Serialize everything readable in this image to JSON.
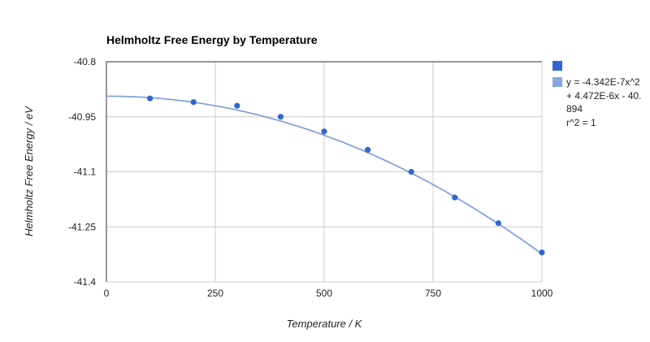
{
  "chart_data": {
    "type": "scatter",
    "title": "Helmholtz Free Energy by Temperature",
    "xlabel": "Temperature / K",
    "ylabel": "Helmholtz Free Energy / eV",
    "xlim": [
      0,
      1000
    ],
    "ylim": [
      -41.4,
      -40.8
    ],
    "x_ticks": [
      0,
      250,
      500,
      750,
      1000
    ],
    "y_ticks": [
      -40.8,
      -40.95,
      -41.1,
      -41.25,
      -41.4
    ],
    "x_tick_labels": [
      "0",
      "250",
      "500",
      "750",
      "1000"
    ],
    "y_tick_labels": [
      "-40.8",
      "-40.95",
      "-41.1",
      "-41.25",
      "-41.4"
    ],
    "grid": true,
    "legend_position": "right",
    "series": [
      {
        "name": "",
        "color": "#3366cc",
        "points": [
          {
            "x": 100,
            "y": -40.9
          },
          {
            "x": 200,
            "y": -40.91
          },
          {
            "x": 300,
            "y": -40.92
          },
          {
            "x": 400,
            "y": -40.95
          },
          {
            "x": 500,
            "y": -40.99
          },
          {
            "x": 600,
            "y": -41.04
          },
          {
            "x": 700,
            "y": -41.1
          },
          {
            "x": 800,
            "y": -41.17
          },
          {
            "x": 900,
            "y": -41.24
          },
          {
            "x": 1000,
            "y": -41.32
          }
        ]
      }
    ],
    "trendline": {
      "color": "#7799dd",
      "type": "polynomial",
      "coefficients": {
        "a": -4.342e-07,
        "b": 4.472e-06,
        "c": -40.894
      },
      "label_lines": [
        "y = -4.342E-7x^2",
        "+ 4.472E-6x - 40.",
        "894",
        "r^2 = 1"
      ]
    }
  }
}
